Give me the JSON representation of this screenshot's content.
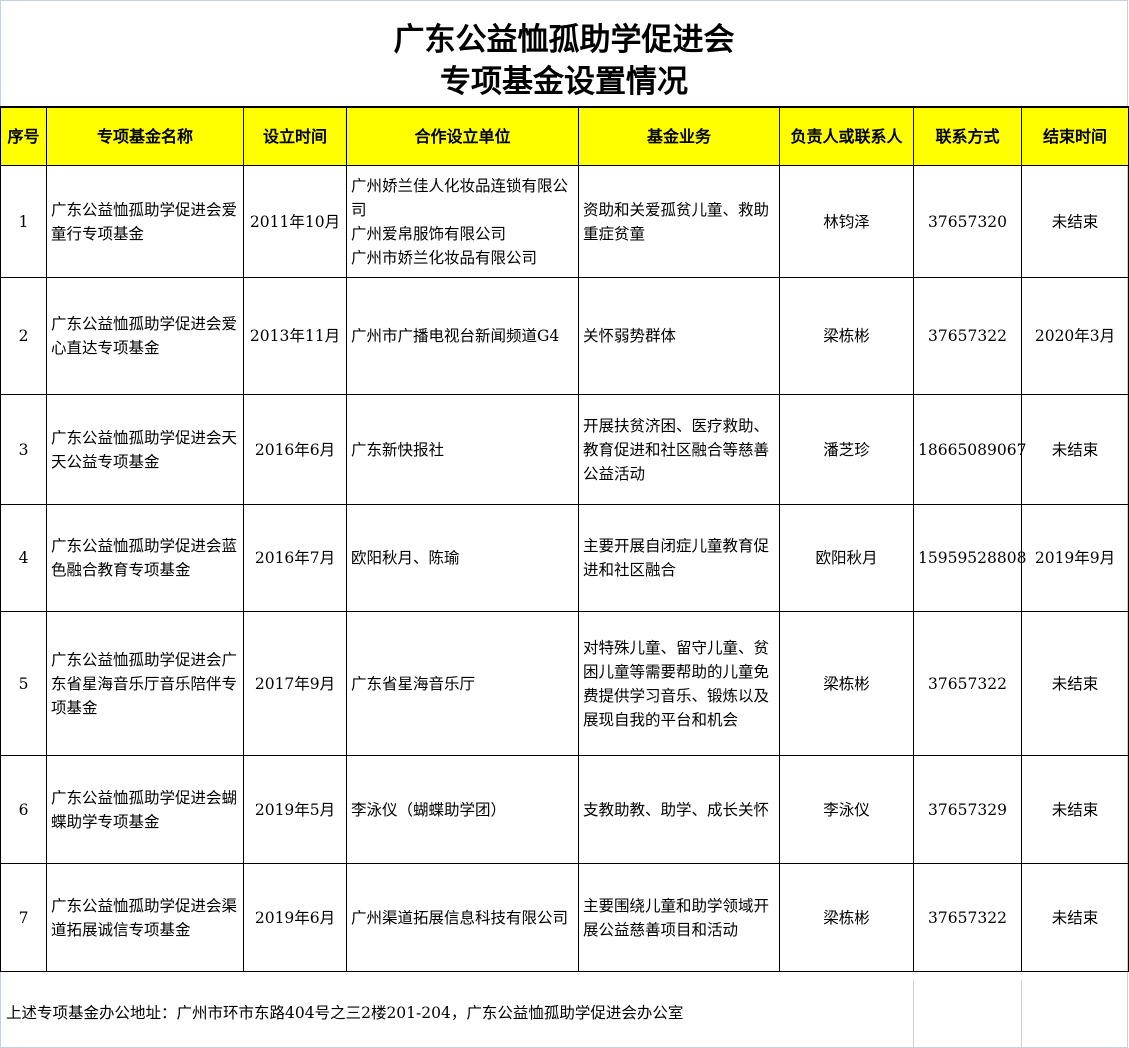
{
  "title_line1": "广东公益恤孤助学促进会",
  "title_line2": "专项基金设置情况",
  "columns": [
    "序号",
    "专项基金名称",
    "设立时间",
    "合作设立单位",
    "基金业务",
    "负责人或联系人",
    "联系方式",
    "结束时间"
  ],
  "rows": [
    {
      "no": "1",
      "name": "广东公益恤孤助学促进会爱童行专项基金",
      "date": "2011年10月",
      "partner": "广州娇兰佳人化妆品连锁有限公司\n广州爱帛服饰有限公司\n广州市娇兰化妆品有限公司",
      "business": "资助和关爱孤贫儿童、救助重症贫童",
      "contact": "林钧泽",
      "phone": "37657320",
      "end": "未结束"
    },
    {
      "no": "2",
      "name": "广东公益恤孤助学促进会爱心直达专项基金",
      "date": "2013年11月",
      "partner": "广州市广播电视台新闻频道G4",
      "business": "关怀弱势群体",
      "contact": "梁栋彬",
      "phone": "37657322",
      "end": "2020年3月"
    },
    {
      "no": "3",
      "name": "广东公益恤孤助学促进会天天公益专项基金",
      "date": "2016年6月",
      "partner": "广东新快报社",
      "business": "开展扶贫济困、医疗救助、教育促进和社区融合等慈善公益活动",
      "contact": "潘芝珍",
      "phone": "18665089067",
      "end": "未结束"
    },
    {
      "no": "4",
      "name": "广东公益恤孤助学促进会蓝色融合教育专项基金",
      "date": "2016年7月",
      "partner": "欧阳秋月、陈瑜",
      "business": "主要开展自闭症儿童教育促进和社区融合",
      "contact": "欧阳秋月",
      "phone": "15959528808",
      "end": "2019年9月"
    },
    {
      "no": "5",
      "name": "广东公益恤孤助学促进会广东省星海音乐厅音乐陪伴专项基金",
      "date": "2017年9月",
      "partner": "广东省星海音乐厅",
      "business": "对特殊儿童、留守儿童、贫困儿童等需要帮助的儿童免费提供学习音乐、锻炼以及展现自我的平台和机会",
      "contact": "梁栋彬",
      "phone": "37657322",
      "end": "未结束"
    },
    {
      "no": "6",
      "name": "广东公益恤孤助学促进会蝴蝶助学专项基金",
      "date": "2019年5月",
      "partner": "李泳仪（蝴蝶助学团）",
      "business": "支教助教、助学、成长关怀",
      "contact": "李泳仪",
      "phone": "37657329",
      "end": "未结束"
    },
    {
      "no": "7",
      "name": "广东公益恤孤助学促进会渠道拓展诚信专项基金",
      "date": "2019年6月",
      "partner": "广州渠道拓展信息科技有限公司",
      "business": "主要围绕儿童和助学领域开展公益慈善项目和活动",
      "contact": "梁栋彬",
      "phone": "37657322",
      "end": "未结束"
    }
  ],
  "footer": "上述专项基金办公地址：广州市环市东路404号之三2楼201-204，广东公益恤孤助学促进会办公室",
  "colors": {
    "header_bg": "#ffff00",
    "grid": "#c6cedf"
  }
}
